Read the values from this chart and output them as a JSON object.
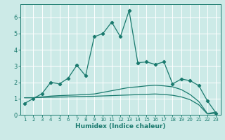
{
  "xlabel": "Humidex (Indice chaleur)",
  "bg_color": "#cceae7",
  "grid_color": "#ffffff",
  "line_color": "#1a7a6e",
  "xlim": [
    0.5,
    23.5
  ],
  "ylim": [
    0,
    6.8
  ],
  "yticks": [
    0,
    1,
    2,
    3,
    4,
    5,
    6
  ],
  "xticks": [
    1,
    2,
    3,
    4,
    5,
    6,
    7,
    8,
    9,
    10,
    11,
    12,
    13,
    14,
    15,
    16,
    17,
    18,
    19,
    20,
    21,
    22,
    23
  ],
  "series1_x": [
    1,
    2,
    3,
    4,
    5,
    6,
    7,
    8,
    9,
    10,
    11,
    12,
    13,
    14,
    15,
    16,
    17,
    18,
    19,
    20,
    21,
    22,
    23
  ],
  "series1_y": [
    0.7,
    1.0,
    1.3,
    2.0,
    1.9,
    2.25,
    3.05,
    2.4,
    4.8,
    5.0,
    5.7,
    4.8,
    6.4,
    3.2,
    3.25,
    3.1,
    3.25,
    1.9,
    2.2,
    2.1,
    1.8,
    0.85,
    0.1
  ],
  "series2_x": [
    1,
    2,
    3,
    4,
    5,
    6,
    7,
    8,
    9,
    10,
    11,
    12,
    13,
    14,
    15,
    16,
    17,
    18,
    19,
    20,
    21,
    22,
    23
  ],
  "series2_y": [
    1.05,
    1.05,
    1.1,
    1.15,
    1.18,
    1.2,
    1.22,
    1.25,
    1.28,
    1.38,
    1.48,
    1.58,
    1.68,
    1.72,
    1.78,
    1.82,
    1.78,
    1.72,
    1.55,
    1.25,
    0.82,
    0.07,
    0.18
  ],
  "series3_x": [
    1,
    2,
    3,
    4,
    5,
    6,
    7,
    8,
    9,
    10,
    11,
    12,
    13,
    14,
    15,
    16,
    17,
    18,
    19,
    20,
    21,
    22,
    23
  ],
  "series3_y": [
    1.05,
    1.05,
    1.07,
    1.08,
    1.09,
    1.1,
    1.12,
    1.13,
    1.14,
    1.16,
    1.18,
    1.2,
    1.22,
    1.24,
    1.26,
    1.28,
    1.25,
    1.2,
    1.1,
    0.93,
    0.62,
    0.05,
    0.1
  ]
}
